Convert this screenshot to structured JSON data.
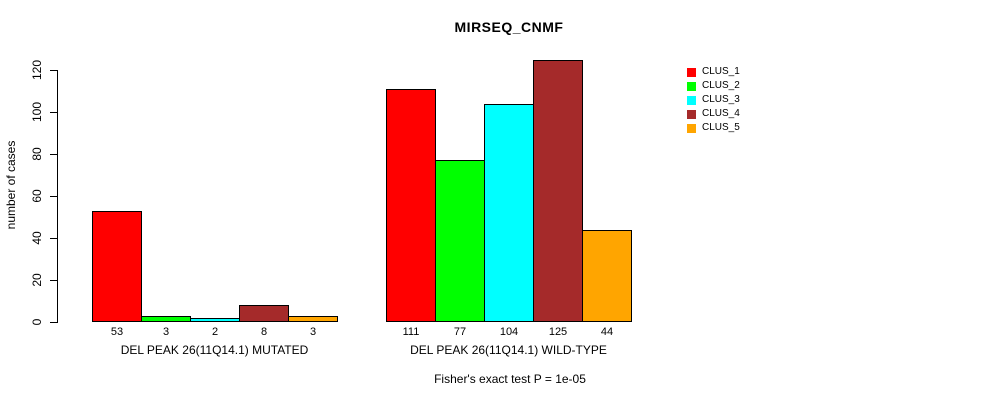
{
  "title": "MIRSEQ_CNMF",
  "y_axis": {
    "label": "number of cases",
    "ticks": [
      0,
      20,
      40,
      60,
      80,
      100,
      120
    ]
  },
  "caption": "Fisher's exact test P = 1e-05",
  "chart_data": {
    "type": "bar",
    "title": "MIRSEQ_CNMF",
    "xlabel": "",
    "ylabel": "number of cases",
    "ylim": [
      0,
      130
    ],
    "yticks": [
      0,
      20,
      40,
      60,
      80,
      100,
      120
    ],
    "grid": false,
    "legend_position": "right",
    "bar_value_labels": true,
    "categories": [
      "DEL PEAK 26(11Q14.1) MUTATED",
      "DEL PEAK 26(11Q14.1) WILD-TYPE"
    ],
    "series": [
      {
        "name": "CLUS_1",
        "color": "#FF0000",
        "values": [
          53,
          111
        ]
      },
      {
        "name": "CLUS_2",
        "color": "#00FF00",
        "values": [
          3,
          77
        ]
      },
      {
        "name": "CLUS_3",
        "color": "#00FFFF",
        "values": [
          2,
          104
        ]
      },
      {
        "name": "CLUS_4",
        "color": "#A52A2A",
        "values": [
          8,
          125
        ]
      },
      {
        "name": "CLUS_5",
        "color": "#FFA500",
        "values": [
          3,
          44
        ]
      }
    ],
    "annotation": "Fisher's exact test P = 1e-05"
  }
}
